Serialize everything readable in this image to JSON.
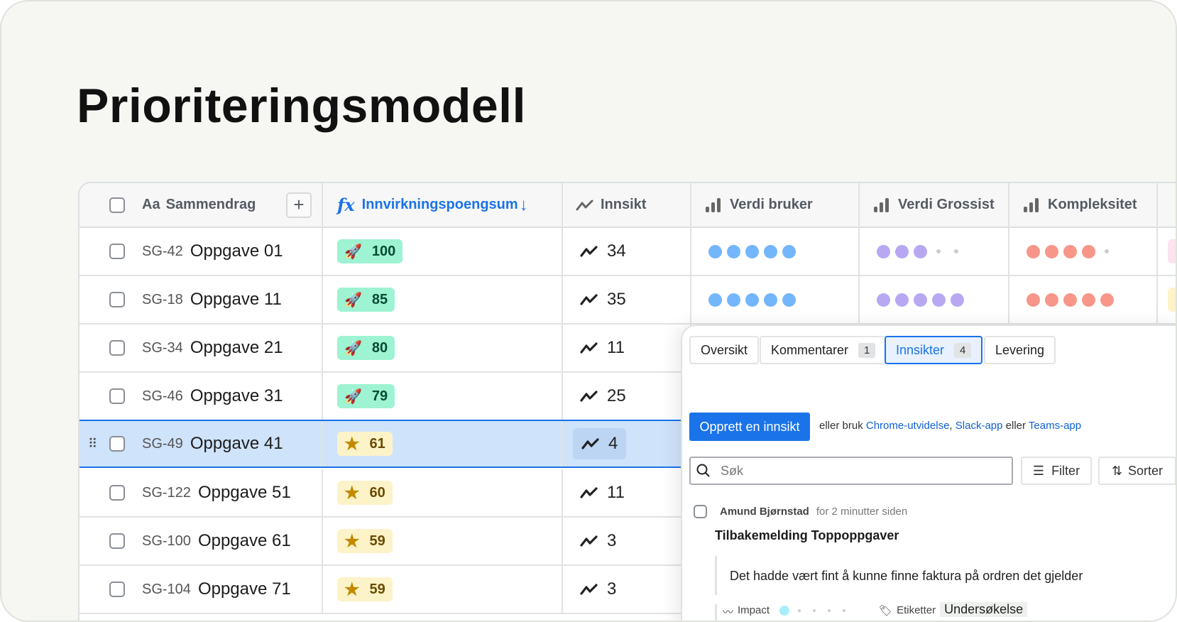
{
  "title": "Prioriteringsmodell",
  "columns": {
    "summary": "Sammendrag",
    "summary_icon": "Aa",
    "score": "Innvirkningspoengsum",
    "insight": "Innsikt",
    "user_value": "Verdi bruker",
    "wholesaler_value": "Verdi Grossist",
    "complexity": "Kompleksitet"
  },
  "colors": {
    "accent": "#1a73e8",
    "blue_dot": "#74b6fb",
    "purple_dot": "#b8a8f2",
    "red_dot": "#f8968a"
  },
  "rows": [
    {
      "id": "SG-42",
      "name": "Oppgave 01",
      "score": 100,
      "score_icon": "rocket",
      "insight": 34,
      "user_value": 5,
      "wholesaler_value": 3,
      "complexity": 4
    },
    {
      "id": "SG-18",
      "name": "Oppgave 11",
      "score": 85,
      "score_icon": "rocket",
      "insight": 35,
      "user_value": 5,
      "wholesaler_value": 5,
      "complexity": 5
    },
    {
      "id": "SG-34",
      "name": "Oppgave 21",
      "score": 80,
      "score_icon": "rocket",
      "insight": 11
    },
    {
      "id": "SG-46",
      "name": "Oppgave 31",
      "score": 79,
      "score_icon": "rocket",
      "insight": 25
    },
    {
      "id": "SG-49",
      "name": "Oppgave 41",
      "score": 61,
      "score_icon": "star",
      "insight": 4,
      "selected": true
    },
    {
      "id": "SG-122",
      "name": "Oppgave 51",
      "score": 60,
      "score_icon": "star",
      "insight": 11
    },
    {
      "id": "SG-100",
      "name": "Oppgave 61",
      "score": 59,
      "score_icon": "star",
      "insight": 3
    },
    {
      "id": "SG-104",
      "name": "Oppgave 71",
      "score": 59,
      "score_icon": "star",
      "insight": 3
    }
  ],
  "panel": {
    "tabs": [
      {
        "label": "Oversikt"
      },
      {
        "label": "Kommentarer",
        "count": "1"
      },
      {
        "label": "Innsikter",
        "count": "4",
        "active": true
      },
      {
        "label": "Levering"
      }
    ],
    "create_button": "Opprett en innsikt",
    "or_use": "eller bruk",
    "link_chrome": "Chrome-utvidelse",
    "link_slack": "Slack-app",
    "or": "eller",
    "link_teams": "Teams-app",
    "search_placeholder": "Søk",
    "filter": "Filter",
    "sort": "Sorter",
    "insight": {
      "author": "Amund Bjørnstad",
      "time": "for 2 minutter siden",
      "title": "Tilbakemelding Toppoppgaver",
      "quote": "Det hadde vært fint å kunne finne faktura på ordren det gjelder",
      "impact_label": "Impact",
      "impact_value": 1,
      "tags_label": "Etiketter",
      "tag": "Undersøkelse"
    }
  }
}
